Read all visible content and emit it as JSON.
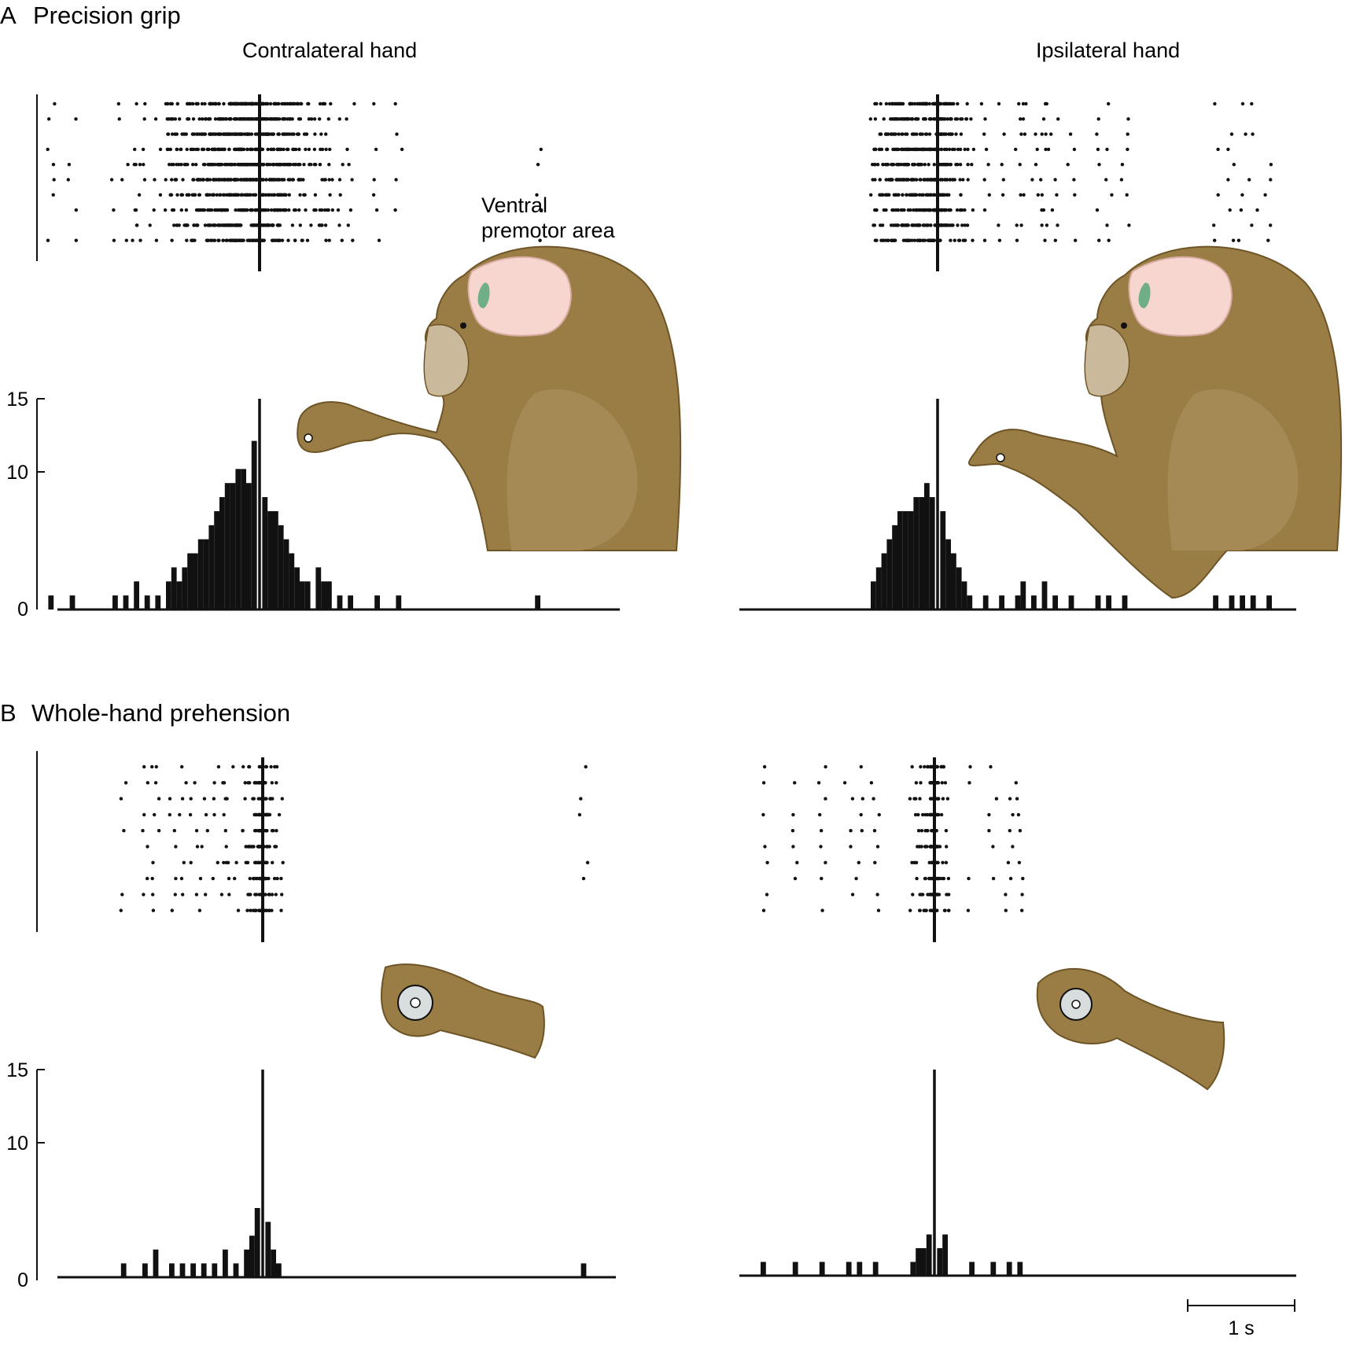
{
  "panels": [
    {
      "letter": "A",
      "title": "Precision grip"
    },
    {
      "letter": "B",
      "title": "Whole-hand prehension"
    }
  ],
  "columns": {
    "left": "Contralateral hand",
    "right": "Ipsilateral hand"
  },
  "region_label": [
    "Ventral",
    "premotor area"
  ],
  "scale_bar": "1 s",
  "colors": {
    "fur": "#9a7c45",
    "fur_dark": "#6e5527",
    "brain": "#f7d6cf",
    "premotor": "#6fae86",
    "ink": "#111111"
  },
  "chart_data": [
    {
      "type": "bar",
      "panel": "A",
      "hand": "Contralateral hand",
      "ylim": [
        0,
        15
      ],
      "yticks": [
        "0",
        "10",
        "15"
      ],
      "xlim": [
        -2.0,
        3.3
      ],
      "align_time": 0,
      "bins": [
        [
          -1.95,
          1
        ],
        [
          -1.75,
          1
        ],
        [
          -1.35,
          1
        ],
        [
          -1.25,
          1
        ],
        [
          -1.15,
          2
        ],
        [
          -1.05,
          1
        ],
        [
          -0.95,
          1
        ],
        [
          -0.85,
          2
        ],
        [
          -0.8,
          3
        ],
        [
          -0.75,
          2
        ],
        [
          -0.7,
          3
        ],
        [
          -0.65,
          4
        ],
        [
          -0.6,
          4
        ],
        [
          -0.55,
          5
        ],
        [
          -0.5,
          5
        ],
        [
          -0.45,
          6
        ],
        [
          -0.4,
          7
        ],
        [
          -0.35,
          8
        ],
        [
          -0.3,
          9
        ],
        [
          -0.25,
          9
        ],
        [
          -0.2,
          10
        ],
        [
          -0.15,
          10
        ],
        [
          -0.1,
          9
        ],
        [
          -0.05,
          12
        ],
        [
          0.0,
          15
        ],
        [
          0.05,
          8
        ],
        [
          0.1,
          7
        ],
        [
          0.15,
          7
        ],
        [
          0.2,
          6
        ],
        [
          0.25,
          5
        ],
        [
          0.3,
          4
        ],
        [
          0.35,
          3
        ],
        [
          0.4,
          2
        ],
        [
          0.45,
          2
        ],
        [
          0.55,
          3
        ],
        [
          0.6,
          2
        ],
        [
          0.65,
          2
        ],
        [
          0.75,
          1
        ],
        [
          0.85,
          1
        ],
        [
          1.1,
          1
        ],
        [
          1.3,
          1
        ],
        [
          2.6,
          1
        ]
      ]
    },
    {
      "type": "bar",
      "panel": "A",
      "hand": "Ipsilateral hand",
      "ylim": [
        0,
        15
      ],
      "xlim": [
        -1.85,
        3.45
      ],
      "align_time": 0,
      "bins": [
        [
          -0.6,
          2
        ],
        [
          -0.55,
          3
        ],
        [
          -0.5,
          4
        ],
        [
          -0.45,
          5
        ],
        [
          -0.4,
          6
        ],
        [
          -0.35,
          7
        ],
        [
          -0.3,
          7
        ],
        [
          -0.25,
          7
        ],
        [
          -0.2,
          8
        ],
        [
          -0.15,
          8
        ],
        [
          -0.1,
          9
        ],
        [
          -0.05,
          8
        ],
        [
          0.0,
          15
        ],
        [
          0.05,
          7
        ],
        [
          0.1,
          5
        ],
        [
          0.15,
          4
        ],
        [
          0.2,
          3
        ],
        [
          0.25,
          2
        ],
        [
          0.3,
          1
        ],
        [
          0.45,
          1
        ],
        [
          0.6,
          1
        ],
        [
          0.75,
          1
        ],
        [
          0.8,
          2
        ],
        [
          0.9,
          1
        ],
        [
          1.0,
          2
        ],
        [
          1.1,
          1
        ],
        [
          1.25,
          1
        ],
        [
          1.5,
          1
        ],
        [
          1.6,
          1
        ],
        [
          1.75,
          1
        ],
        [
          2.6,
          1
        ],
        [
          2.75,
          1
        ],
        [
          2.85,
          1
        ],
        [
          2.95,
          1
        ],
        [
          3.1,
          1
        ]
      ]
    },
    {
      "type": "bar",
      "panel": "B",
      "hand": "Contralateral hand",
      "ylim": [
        0,
        15
      ],
      "yticks": [
        "0",
        "10",
        "15"
      ],
      "xlim": [
        -2.0,
        3.3
      ],
      "align_time": 0,
      "bins": [
        [
          -1.3,
          1
        ],
        [
          -1.1,
          1
        ],
        [
          -1.0,
          2
        ],
        [
          -0.85,
          1
        ],
        [
          -0.75,
          1
        ],
        [
          -0.65,
          1
        ],
        [
          -0.55,
          1
        ],
        [
          -0.45,
          1
        ],
        [
          -0.35,
          2
        ],
        [
          -0.25,
          1
        ],
        [
          -0.15,
          2
        ],
        [
          -0.1,
          3
        ],
        [
          -0.05,
          5
        ],
        [
          0.0,
          15
        ],
        [
          0.05,
          4
        ],
        [
          0.1,
          2
        ],
        [
          0.15,
          1
        ],
        [
          3.0,
          1
        ]
      ]
    },
    {
      "type": "bar",
      "panel": "B",
      "hand": "Ipsilateral hand",
      "ylim": [
        0,
        15
      ],
      "xlim": [
        -1.85,
        3.45
      ],
      "align_time": 0,
      "bins": [
        [
          -1.6,
          1
        ],
        [
          -1.3,
          1
        ],
        [
          -1.05,
          1
        ],
        [
          -0.8,
          1
        ],
        [
          -0.7,
          1
        ],
        [
          -0.55,
          1
        ],
        [
          -0.2,
          1
        ],
        [
          -0.15,
          2
        ],
        [
          -0.1,
          2
        ],
        [
          -0.05,
          3
        ],
        [
          0.0,
          15
        ],
        [
          0.05,
          2
        ],
        [
          0.1,
          3
        ],
        [
          0.35,
          1
        ],
        [
          0.55,
          1
        ],
        [
          0.7,
          1
        ],
        [
          0.8,
          1
        ]
      ]
    }
  ]
}
